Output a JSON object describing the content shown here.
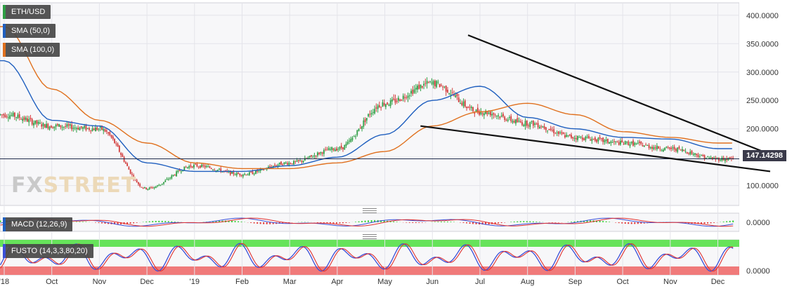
{
  "instrument": "ETH/USD",
  "last_price": "147.14298",
  "indicators": {
    "sma50": {
      "label": "SMA (50,0)",
      "color": "#1f5fbf"
    },
    "sma100": {
      "label": "SMA (100,0)",
      "color": "#e0701e"
    },
    "macd": {
      "label": "MACD (12,26,9)"
    },
    "fusto": {
      "label": "FUSTO (14,3,3,80,20)"
    }
  },
  "watermark": {
    "part1": "FX",
    "part2": "STREET"
  },
  "colors": {
    "up": "#2e9e44",
    "down": "#d23c3c",
    "sma50": "#1f5fbf",
    "sma100": "#e0701e",
    "fusto_k": "#3b4fd8",
    "fusto_d": "#e03030",
    "overbought_zone": "#66e35a",
    "oversold_zone": "#f07a7a"
  },
  "chart_data": [
    {
      "type": "line",
      "title": "ETH/USD",
      "xlabel": "",
      "ylabel": "",
      "x_ticks": [
        "'18",
        "Oct",
        "Nov",
        "Dec",
        "'19",
        "Feb",
        "Mar",
        "Apr",
        "May",
        "Jun",
        "Jul",
        "Aug",
        "Sep",
        "Oct",
        "Nov",
        "Dec"
      ],
      "y_ticks": [
        "100.0000",
        "150.0000",
        "200.0000",
        "250.0000",
        "300.0000",
        "350.0000",
        "400.0000"
      ],
      "ylim": [
        65,
        422
      ],
      "grid": true,
      "legend": "top-left",
      "series": [
        {
          "name": "ETH/USD",
          "x": [
            "Sep 2018",
            "Oct 2018",
            "Nov 2018",
            "Dec 2018",
            "Jan 2019",
            "Feb 2019",
            "Mar 2019",
            "Apr 2019",
            "May 2019",
            "Jun 2019",
            "Jul 2019",
            "Aug 2019",
            "Sep 2019",
            "Oct 2019",
            "Nov 2019",
            "Dec 2019"
          ],
          "values": [
            225,
            205,
            200,
            95,
            135,
            120,
            140,
            165,
            245,
            280,
            230,
            210,
            185,
            175,
            165,
            147
          ]
        },
        {
          "name": "SMA (50,0)",
          "x": [
            "Sep 2018",
            "Oct 2018",
            "Nov 2018",
            "Dec 2018",
            "Jan 2019",
            "Feb 2019",
            "Mar 2019",
            "Apr 2019",
            "May 2019",
            "Jun 2019",
            "Jul 2019",
            "Aug 2019",
            "Sep 2019",
            "Oct 2019",
            "Nov 2019",
            "Dec 2019"
          ],
          "values": [
            320,
            215,
            205,
            140,
            125,
            125,
            135,
            150,
            190,
            250,
            275,
            220,
            200,
            185,
            182,
            165
          ]
        },
        {
          "name": "SMA (100,0)",
          "x": [
            "Sep 2018",
            "Oct 2018",
            "Nov 2018",
            "Dec 2018",
            "Jan 2019",
            "Feb 2019",
            "Mar 2019",
            "Apr 2019",
            "May 2019",
            "Jun 2019",
            "Jul 2019",
            "Aug 2019",
            "Sep 2019",
            "Oct 2019",
            "Nov 2019",
            "Dec 2019"
          ],
          "values": [
            380,
            270,
            215,
            175,
            140,
            130,
            130,
            140,
            160,
            205,
            230,
            245,
            225,
            195,
            185,
            175
          ]
        }
      ],
      "annotations": [
        {
          "type": "trendline",
          "from": [
            "Jun 2019",
            365
          ],
          "to": [
            "Dec 2019",
            155
          ]
        },
        {
          "type": "trendline",
          "from": [
            "May 2019",
            205
          ],
          "to": [
            "Dec 2019",
            125
          ]
        },
        {
          "type": "horizontal_line",
          "value": 147.14298
        }
      ]
    },
    {
      "type": "line",
      "title": "MACD (12,26,9)",
      "y_ticks": [
        "0.0000"
      ],
      "ylim": [
        -1,
        1
      ]
    },
    {
      "type": "line",
      "title": "FUSTO (14,3,3,80,20)",
      "y_ticks": [
        "0.0000"
      ],
      "ylim": [
        0,
        100
      ]
    }
  ]
}
